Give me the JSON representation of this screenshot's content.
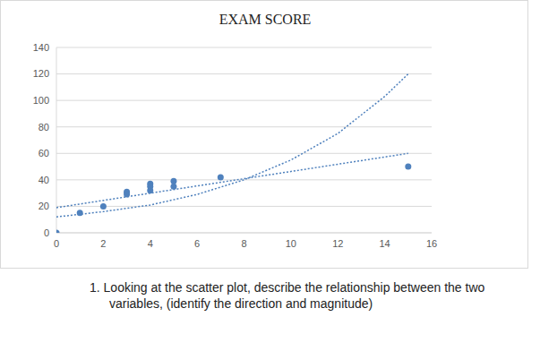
{
  "chart_data": {
    "type": "scatter",
    "title": "EXAM SCORE",
    "xlim": [
      0,
      16
    ],
    "xticks": [
      0,
      2,
      4,
      6,
      8,
      10,
      12,
      14,
      16
    ],
    "ylim": [
      0,
      140
    ],
    "yticks": [
      0,
      20,
      40,
      60,
      80,
      100,
      120,
      140
    ],
    "grid": true,
    "series": [
      {
        "type": "scatter",
        "marker": "circle",
        "color": "#4f81bd",
        "x": [
          0,
          1,
          2,
          3,
          3,
          4,
          4,
          4,
          5,
          5,
          7,
          15
        ],
        "values": [
          0,
          15,
          20,
          31,
          29,
          37,
          35,
          32,
          39,
          35,
          42,
          50
        ]
      },
      {
        "type": "line",
        "line_style": "dotted",
        "color": "#4f81bd",
        "x": [
          0,
          15
        ],
        "values": [
          19,
          60
        ]
      },
      {
        "type": "line",
        "line_style": "dotted",
        "color": "#4f81bd",
        "x": [
          0,
          2,
          4,
          6,
          8,
          10,
          12,
          14,
          15
        ],
        "values": [
          12,
          16,
          21,
          29,
          40,
          55,
          75,
          103,
          120
        ]
      }
    ],
    "annotations": [
      "1. Looking at the scatter plot, describe the relationship between the two variables, (identify the direction and magnitude)"
    ]
  }
}
